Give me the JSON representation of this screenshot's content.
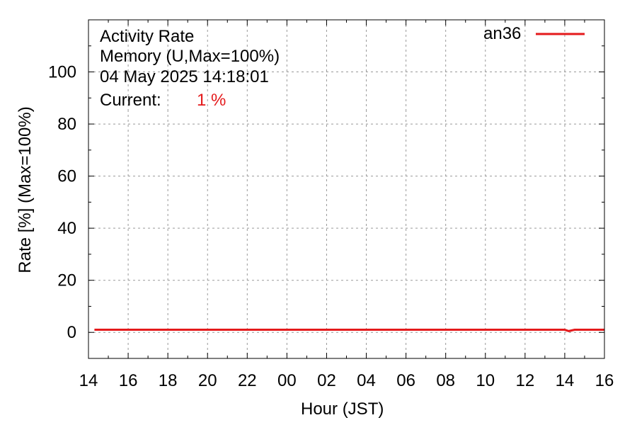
{
  "chart_data": {
    "type": "line",
    "title": "Activity Rate",
    "subtitle": "Memory (U,Max=100%)",
    "timestamp": "04 May 2025 14:18:01",
    "current_label": "Current:",
    "current_value": "1 %",
    "xlabel": "Hour (JST)",
    "ylabel": "Rate [%]  (Max=100%)",
    "x_ticks": [
      "14",
      "16",
      "18",
      "20",
      "22",
      "00",
      "02",
      "04",
      "06",
      "08",
      "10",
      "12",
      "14",
      "16"
    ],
    "y_ticks": [
      "0",
      "20",
      "40",
      "60",
      "80",
      "100"
    ],
    "xlim_hours": [
      14.0,
      40.0
    ],
    "ylim": [
      -10,
      120
    ],
    "grid": true,
    "legend_position": "top-right",
    "series": [
      {
        "name": "an36",
        "color": "#e41a1c",
        "x_hours": [
          14.3,
          15.0,
          16.0,
          17.0,
          18.0,
          19.0,
          20.0,
          21.0,
          22.0,
          23.0,
          24.0,
          25.0,
          26.0,
          27.0,
          28.0,
          29.0,
          30.0,
          31.0,
          32.0,
          33.0,
          34.0,
          35.0,
          36.0,
          37.0,
          38.0,
          38.2,
          38.5,
          39.0,
          40.0
        ],
        "values": [
          1,
          1,
          1,
          1,
          1,
          1,
          1,
          1,
          1,
          1,
          1,
          1,
          1,
          1,
          1,
          1,
          1,
          1,
          1,
          1,
          1,
          1,
          1,
          1,
          1,
          0.5,
          1,
          1,
          1
        ]
      }
    ]
  }
}
